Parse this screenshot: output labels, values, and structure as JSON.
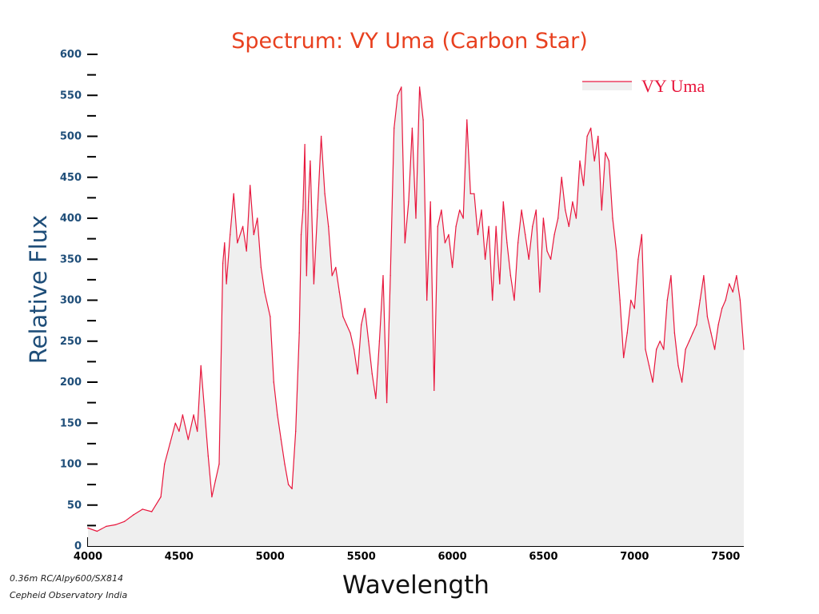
{
  "colors": {
    "series": "#e8173d",
    "fill": "#efefef",
    "title": "#e8401f",
    "ytick": "#1f4e79",
    "ylabel": "#1f4e79"
  },
  "footnotes": {
    "line1": "0.36m RC/Alpy600/SX814",
    "line2": "Cepheid Observatory India"
  },
  "chart_data": {
    "type": "area",
    "title": "Spectrum: VY Uma (Carbon Star)",
    "xlabel": "Wavelength",
    "ylabel": "Relative Flux",
    "xlim": [
      4000,
      7600
    ],
    "ylim": [
      0,
      600
    ],
    "xticks": [
      4000,
      4500,
      5000,
      5500,
      6000,
      6500,
      7000,
      7500
    ],
    "xtick_labels": [
      "4000",
      "4500",
      "5000",
      "5500",
      "6000",
      "6500",
      "7000",
      "7500"
    ],
    "yticks": [
      0,
      50,
      100,
      150,
      200,
      250,
      300,
      350,
      400,
      450,
      500,
      550,
      600
    ],
    "ytick_labels": [
      "0",
      "50",
      "100",
      "150",
      "200",
      "250",
      "300",
      "350",
      "400",
      "450",
      "500",
      "550",
      "600"
    ],
    "legend": {
      "position": "top-right"
    },
    "grid": false,
    "series": [
      {
        "name": "VY Uma",
        "color": "#e8173d",
        "x": [
          4000,
          4050,
          4100,
          4150,
          4200,
          4250,
          4300,
          4350,
          4400,
          4420,
          4450,
          4480,
          4500,
          4520,
          4550,
          4580,
          4600,
          4620,
          4640,
          4660,
          4680,
          4700,
          4720,
          4740,
          4750,
          4760,
          4780,
          4800,
          4820,
          4850,
          4870,
          4890,
          4910,
          4930,
          4950,
          4970,
          5000,
          5020,
          5040,
          5060,
          5080,
          5100,
          5120,
          5140,
          5160,
          5170,
          5180,
          5190,
          5200,
          5210,
          5220,
          5240,
          5260,
          5280,
          5300,
          5320,
          5340,
          5360,
          5380,
          5400,
          5420,
          5440,
          5460,
          5480,
          5500,
          5520,
          5540,
          5560,
          5580,
          5600,
          5620,
          5640,
          5660,
          5680,
          5700,
          5720,
          5740,
          5760,
          5780,
          5800,
          5820,
          5840,
          5860,
          5880,
          5900,
          5920,
          5940,
          5960,
          5980,
          6000,
          6020,
          6040,
          6060,
          6080,
          6100,
          6120,
          6140,
          6160,
          6180,
          6200,
          6220,
          6240,
          6260,
          6280,
          6300,
          6320,
          6340,
          6360,
          6380,
          6400,
          6420,
          6440,
          6460,
          6480,
          6500,
          6520,
          6540,
          6560,
          6580,
          6600,
          6620,
          6640,
          6660,
          6680,
          6700,
          6720,
          6740,
          6760,
          6780,
          6800,
          6820,
          6840,
          6860,
          6880,
          6900,
          6920,
          6940,
          6960,
          6980,
          7000,
          7020,
          7040,
          7060,
          7080,
          7100,
          7120,
          7140,
          7160,
          7180,
          7200,
          7220,
          7240,
          7260,
          7280,
          7300,
          7320,
          7340,
          7360,
          7380,
          7400,
          7420,
          7440,
          7460,
          7480,
          7500,
          7520,
          7540,
          7560,
          7580,
          7600
        ],
        "y": [
          22,
          18,
          24,
          26,
          30,
          38,
          45,
          42,
          60,
          100,
          125,
          150,
          140,
          160,
          130,
          160,
          140,
          220,
          165,
          110,
          60,
          80,
          100,
          345,
          370,
          320,
          380,
          430,
          370,
          390,
          360,
          440,
          380,
          400,
          340,
          310,
          280,
          200,
          160,
          130,
          100,
          75,
          70,
          140,
          260,
          380,
          410,
          490,
          330,
          420,
          470,
          320,
          410,
          500,
          430,
          390,
          330,
          340,
          310,
          280,
          270,
          260,
          240,
          210,
          270,
          290,
          250,
          210,
          180,
          250,
          330,
          175,
          330,
          510,
          550,
          560,
          370,
          420,
          510,
          400,
          560,
          520,
          300,
          420,
          190,
          390,
          410,
          370,
          380,
          340,
          390,
          410,
          400,
          520,
          430,
          430,
          380,
          410,
          350,
          390,
          300,
          390,
          320,
          420,
          370,
          330,
          300,
          370,
          410,
          380,
          350,
          390,
          410,
          310,
          400,
          360,
          350,
          380,
          400,
          450,
          410,
          390,
          420,
          400,
          470,
          440,
          500,
          510,
          470,
          500,
          410,
          480,
          470,
          400,
          360,
          300,
          230,
          260,
          300,
          290,
          350,
          380,
          240,
          220,
          200,
          240,
          250,
          240,
          300,
          330,
          260,
          220,
          200,
          240,
          250,
          260,
          270,
          300,
          330,
          280,
          260,
          240,
          270,
          290,
          300,
          320,
          310,
          330,
          300,
          240
        ]
      }
    ]
  }
}
